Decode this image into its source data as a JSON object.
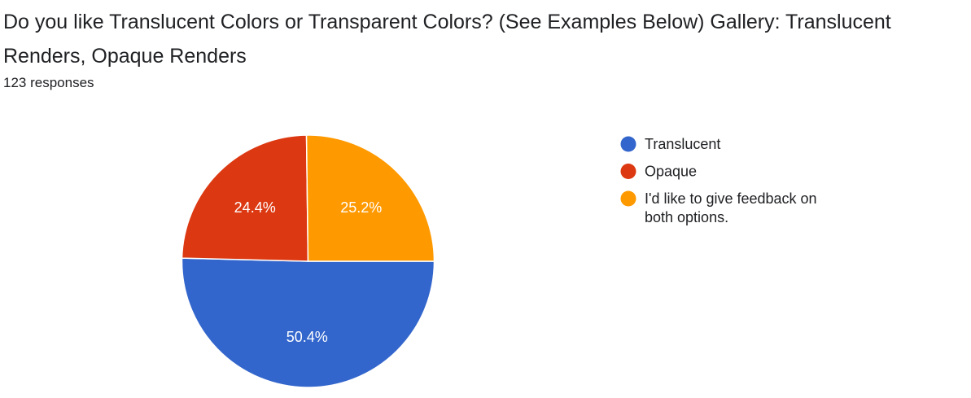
{
  "header": {
    "title": "Do you like Translucent Colors or Transparent Colors? (See Examples Below)   Gallery: Translucent Renders, Opaque Renders",
    "responses": "123 responses"
  },
  "chart_data": {
    "type": "pie",
    "slices": [
      {
        "label": "Translucent",
        "value": 50.4,
        "display": "50.4%",
        "color": "#3366cc"
      },
      {
        "label": "Opaque",
        "value": 24.4,
        "display": "24.4%",
        "color": "#dc3912"
      },
      {
        "label": "I'd like to give feedback on both options.",
        "value": 25.2,
        "display": "25.2%",
        "color": "#ff9900"
      }
    ],
    "legend": {
      "position": "right",
      "entries": [
        {
          "lines": [
            "Translucent"
          ]
        },
        {
          "lines": [
            "Opaque"
          ]
        },
        {
          "lines": [
            "I'd like to give feedback on",
            "both options."
          ]
        }
      ]
    }
  }
}
